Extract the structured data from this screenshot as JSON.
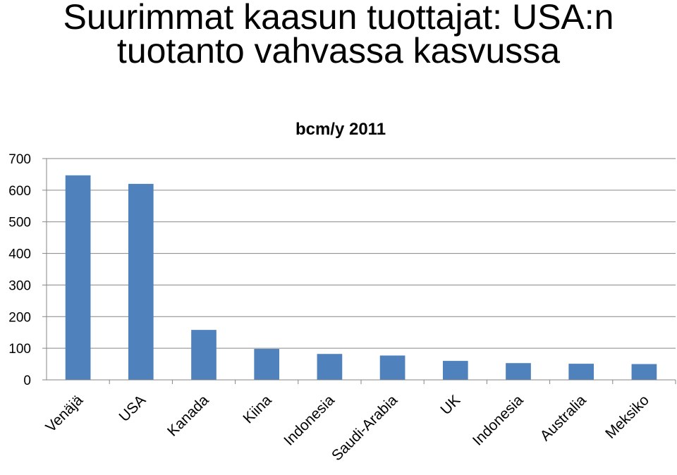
{
  "slide": {
    "title_line1": "Suurimmat kaasun tuottajat: USA:n",
    "title_line2": "tuotanto vahvassa kasvussa"
  },
  "chart_data": {
    "type": "bar",
    "title": "bcm/y 2011",
    "categories": [
      "Venäjä",
      "USA",
      "Kanada",
      "Kiina",
      "Indonesia",
      "Saudi-Arabia",
      "UK",
      "Indonesia",
      "Australia",
      "Meksiko"
    ],
    "values": [
      647,
      620,
      158,
      98,
      82,
      77,
      60,
      53,
      51,
      50
    ],
    "ylim": [
      0,
      700
    ],
    "yticks": [
      0,
      100,
      200,
      300,
      400,
      500,
      600,
      700
    ],
    "xlabel": "",
    "ylabel": "",
    "grid": true,
    "legend": "none",
    "colors": {
      "bar": "#4F81BD",
      "grid": "#868686",
      "axis": "#868686"
    }
  }
}
